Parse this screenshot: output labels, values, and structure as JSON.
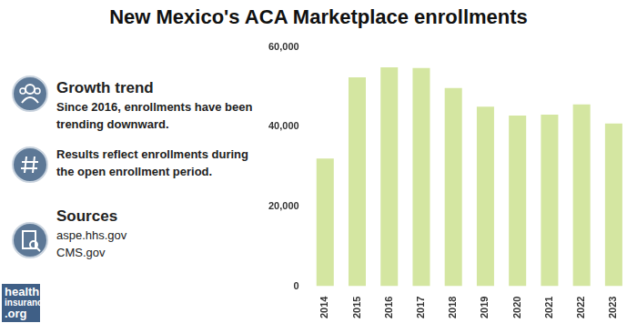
{
  "chart_data": {
    "type": "bar",
    "title": "New Mexico's ACA Marketplace enrollments",
    "categories": [
      "2014",
      "2015",
      "2016",
      "2017",
      "2018",
      "2019",
      "2020",
      "2021",
      "2022",
      "2023"
    ],
    "values": [
      32000,
      52400,
      54900,
      54700,
      49700,
      45000,
      42800,
      43000,
      45600,
      40800
    ],
    "color": "#d4e6a1",
    "ylim": [
      0,
      60000
    ],
    "yticks": [
      0,
      {
        "value": 20000,
        "label": "20,000"
      },
      {
        "value": 40000,
        "label": "40,000"
      },
      {
        "value": 60000,
        "label": "60,000"
      }
    ],
    "grid": false
  },
  "notes": [
    {
      "heading": "Growth trend",
      "text": "Since 2016, enrollments have been trending downward."
    },
    {
      "text": "Results reflect enrollments during the open enrollment period."
    }
  ],
  "sources": {
    "heading": "Sources",
    "items": [
      "aspe.hhs.gov",
      "CMS.gov"
    ]
  },
  "logo": [
    "health",
    "insurance",
    ".org"
  ]
}
